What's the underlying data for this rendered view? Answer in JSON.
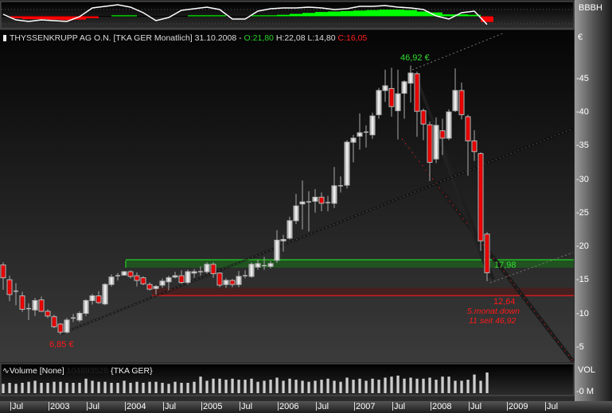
{
  "header": {
    "symbol_icon": "candlestick-icon",
    "title": "THYSSENKRUPP AG O.N. [TKA GER  Monatlich] 31.10.2008 -",
    "open": "O:21,80",
    "high": "H:22,08",
    "low": "L:14,80",
    "close": "C:16,05"
  },
  "indicator_panel": {
    "label": "BBBH",
    "colors": {
      "line": "#ffffff",
      "positive": "#00ff00",
      "negative": "#ff0000"
    }
  },
  "price_axis": {
    "currency": "€",
    "ticks": [
      "-45",
      "-40",
      "-35",
      "-30",
      "-25",
      "-20",
      "-15",
      "-10",
      "-5"
    ]
  },
  "volume_panel": {
    "title": "Volume [None]",
    "hidden_value": "104893528",
    "symbol": "{TKA GER}",
    "axis_label": "VOL",
    "axis_tick": "-0 M"
  },
  "time_axis": {
    "labels": [
      "Jul",
      "2003",
      "Jul",
      "2004",
      "Jul",
      "2005",
      "Jul",
      "2006",
      "Jul",
      "2007",
      "Jul",
      "2008",
      "Jul",
      "2009",
      "Jul"
    ]
  },
  "annotations": {
    "high_label": "46,92 €",
    "low_label": "6,85 €",
    "resistance_label": "17,98",
    "support_label": "12,64",
    "note_line1": "5.monat.down",
    "note_line2": "11 seit 46,92"
  },
  "chart_data": {
    "type": "candlestick",
    "interval": "monthly",
    "ylim": [
      0,
      50
    ],
    "levels": {
      "resistance": 17.98,
      "support": 12.64
    },
    "colors": {
      "up": "#e0e0e0",
      "down": "#dd0000",
      "resistance": "#22ee22",
      "support": "#ff1a1a"
    },
    "ohlc": [
      [
        "2002-06",
        17.2,
        17.6,
        13.5,
        15.3
      ],
      [
        "2002-07",
        15.0,
        15.6,
        11.8,
        12.8
      ],
      [
        "2002-08",
        13.3,
        14.5,
        11.2,
        13.3
      ],
      [
        "2002-09",
        12.6,
        13.2,
        10.2,
        10.6
      ],
      [
        "2002-10",
        10.7,
        11.5,
        9.0,
        10.6
      ],
      [
        "2002-11",
        10.5,
        12.3,
        9.6,
        11.9
      ],
      [
        "2002-12",
        12.0,
        12.5,
        10.2,
        10.3
      ],
      [
        "2003-01",
        10.3,
        10.6,
        9.3,
        9.6
      ],
      [
        "2003-02",
        9.5,
        9.8,
        7.8,
        8.0
      ],
      [
        "2003-03",
        8.4,
        8.5,
        6.85,
        7.2
      ],
      [
        "2003-04",
        7.2,
        9.3,
        7.0,
        9.0
      ],
      [
        "2003-05",
        9.3,
        9.9,
        8.7,
        9.3
      ],
      [
        "2003-06",
        9.0,
        10.3,
        8.7,
        10.0
      ],
      [
        "2003-07",
        10.0,
        12.1,
        9.6,
        11.9
      ],
      [
        "2003-08",
        11.9,
        12.9,
        11.3,
        12.6
      ],
      [
        "2003-09",
        12.6,
        13.3,
        11.4,
        11.6
      ],
      [
        "2003-10",
        11.4,
        14.5,
        11.2,
        14.3
      ],
      [
        "2003-11",
        14.3,
        15.8,
        14.0,
        15.4
      ],
      [
        "2003-12",
        15.5,
        16.0,
        14.9,
        15.6
      ],
      [
        "2004-01",
        15.7,
        16.3,
        15.6,
        16.2
      ],
      [
        "2004-02",
        16.2,
        16.4,
        15.2,
        15.5
      ],
      [
        "2004-03",
        15.6,
        16.1,
        14.0,
        14.9
      ],
      [
        "2004-04",
        15.3,
        15.5,
        14.2,
        14.4
      ],
      [
        "2004-05",
        14.3,
        14.6,
        13.4,
        13.6
      ],
      [
        "2004-06",
        13.7,
        14.2,
        12.8,
        14.0
      ],
      [
        "2004-07",
        14.2,
        15.2,
        13.8,
        14.8
      ],
      [
        "2004-08",
        14.7,
        15.6,
        13.4,
        15.3
      ],
      [
        "2004-09",
        15.4,
        16.2,
        15.2,
        15.6
      ],
      [
        "2004-10",
        15.6,
        16.4,
        14.4,
        14.6
      ],
      [
        "2004-11",
        14.6,
        16.5,
        14.3,
        16.2
      ],
      [
        "2004-12",
        16.0,
        16.6,
        15.3,
        16.2
      ],
      [
        "2005-01",
        16.2,
        17.0,
        15.6,
        16.2
      ],
      [
        "2005-02",
        16.2,
        17.6,
        15.9,
        17.3
      ],
      [
        "2005-03",
        17.3,
        17.6,
        15.3,
        15.9
      ],
      [
        "2005-04",
        16.0,
        16.1,
        13.9,
        14.2
      ],
      [
        "2005-05",
        14.3,
        15.2,
        13.8,
        14.9
      ],
      [
        "2005-06",
        14.9,
        15.1,
        13.9,
        14.3
      ],
      [
        "2005-07",
        14.3,
        16.3,
        13.9,
        15.5
      ],
      [
        "2005-08",
        15.5,
        16.4,
        15.2,
        15.6
      ],
      [
        "2005-09",
        15.5,
        17.6,
        15.3,
        17.3
      ],
      [
        "2005-10",
        16.9,
        18.0,
        16.5,
        17.4
      ],
      [
        "2005-11",
        17.1,
        18.4,
        16.5,
        17.1
      ],
      [
        "2005-12",
        17.0,
        17.8,
        16.7,
        17.4
      ],
      [
        "2006-01",
        17.9,
        22.4,
        17.5,
        20.9
      ],
      [
        "2006-02",
        20.8,
        21.7,
        19.2,
        21.0
      ],
      [
        "2006-03",
        21.2,
        24.4,
        21.0,
        23.8
      ],
      [
        "2006-04",
        23.8,
        27.8,
        23.3,
        26.0
      ],
      [
        "2006-05",
        26.3,
        29.8,
        22.5,
        26.6
      ],
      [
        "2006-06",
        26.5,
        28.2,
        22.2,
        26.6
      ],
      [
        "2006-07",
        26.7,
        28.5,
        25.0,
        27.3
      ],
      [
        "2006-08",
        27.3,
        28.0,
        25.2,
        26.4
      ],
      [
        "2006-09",
        26.4,
        27.5,
        25.2,
        26.5
      ],
      [
        "2006-10",
        26.4,
        31.8,
        25.7,
        29.0
      ],
      [
        "2006-11",
        29.0,
        30.4,
        28.0,
        29.0
      ],
      [
        "2006-12",
        29.1,
        35.8,
        28.6,
        35.5
      ],
      [
        "2007-01",
        35.5,
        36.6,
        32.5,
        36.1
      ],
      [
        "2007-02",
        36.4,
        39.8,
        34.4,
        36.9
      ],
      [
        "2007-03",
        37.0,
        38.0,
        34.7,
        36.9
      ],
      [
        "2007-04",
        36.6,
        39.9,
        36.0,
        39.4
      ],
      [
        "2007-05",
        39.6,
        43.6,
        39.0,
        43.2
      ],
      [
        "2007-06",
        43.2,
        46.3,
        41.5,
        43.9
      ],
      [
        "2007-07",
        43.5,
        46.6,
        39.3,
        40.8
      ],
      [
        "2007-08",
        40.2,
        46.3,
        35.9,
        42.7
      ],
      [
        "2007-09",
        42.8,
        44.7,
        39.0,
        44.5
      ],
      [
        "2007-10",
        44.3,
        46.92,
        41.4,
        45.8
      ],
      [
        "2007-11",
        45.7,
        46.0,
        36.3,
        40.1
      ],
      [
        "2007-12",
        40.2,
        40.5,
        35.8,
        38.2
      ],
      [
        "2008-01",
        38.1,
        38.6,
        29.7,
        32.5
      ],
      [
        "2008-02",
        33.0,
        39.2,
        32.4,
        38.0
      ],
      [
        "2008-03",
        37.2,
        39.0,
        33.6,
        36.1
      ],
      [
        "2008-04",
        36.1,
        40.4,
        35.8,
        40.0
      ],
      [
        "2008-05",
        40.2,
        46.5,
        40.0,
        43.2
      ],
      [
        "2008-06",
        43.2,
        44.4,
        38.9,
        39.6
      ],
      [
        "2008-07",
        39.3,
        39.6,
        30.5,
        35.7
      ],
      [
        "2008-08",
        35.7,
        37.3,
        32.7,
        34.1
      ],
      [
        "2008-09",
        33.8,
        34.0,
        19.3,
        20.8
      ],
      [
        "2008-10",
        21.8,
        22.08,
        14.8,
        16.05
      ]
    ],
    "volume_relative": [
      0.45,
      0.5,
      0.45,
      0.5,
      0.55,
      0.6,
      0.5,
      0.5,
      0.55,
      0.55,
      0.5,
      0.5,
      0.5,
      0.7,
      0.6,
      0.55,
      0.55,
      0.5,
      0.5,
      0.6,
      0.5,
      0.55,
      0.5,
      0.55,
      0.55,
      0.5,
      0.45,
      0.55,
      0.5,
      0.5,
      0.55,
      0.8,
      0.6,
      0.7,
      0.7,
      0.65,
      0.7,
      0.65,
      0.65,
      0.7,
      0.55,
      0.6,
      0.65,
      0.75,
      0.6,
      0.7,
      0.65,
      0.6,
      0.55,
      0.6,
      0.65,
      0.7,
      0.6,
      0.55,
      0.75,
      0.65,
      0.7,
      0.6,
      0.7,
      0.65,
      0.75,
      0.8,
      0.85,
      0.7,
      0.75,
      0.7,
      0.7,
      0.75,
      0.65,
      0.8,
      0.8,
      0.6,
      0.6,
      0.65,
      0.9,
      0.6,
      1.0
    ],
    "indicator_line": [
      0.17,
      -0.42,
      -0.58,
      -0.42,
      -0.5,
      -0.58,
      -0.08,
      0.83,
      1,
      1.17,
      0.92,
      0.33,
      -0.5,
      -0.17,
      0.58,
      0.75,
      0.92,
      0.67,
      -0.33,
      -0.33,
      0.5,
      0.75,
      0.83,
      0.83,
      0.92,
      0.83,
      0.67,
      0.75,
      1,
      1,
      1.08,
      0.92,
      0.83,
      0.67,
      0,
      -0.33,
      0.33,
      0.5,
      -0.9
    ],
    "indicator_hist": [
      0,
      -0.2,
      -0.3,
      -0.3,
      -0.35,
      -0.4,
      -0.35,
      -0.2,
      0,
      0.1,
      0.1,
      0,
      0,
      0,
      0,
      0.1,
      0.1,
      0.1,
      0,
      0,
      0.1,
      0.1,
      0.15,
      0.25,
      0.35,
      0.45,
      0.5,
      0.55,
      0.6,
      0.65,
      0.7,
      0.7,
      0.65,
      0.5,
      0.4,
      0.2,
      0.2,
      0.15,
      -0.6
    ]
  }
}
